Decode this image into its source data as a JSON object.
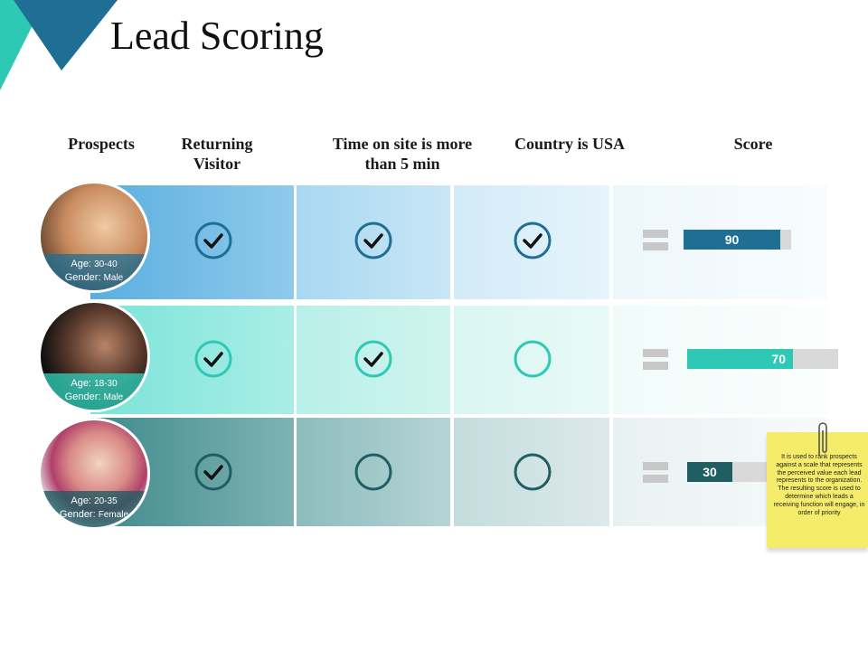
{
  "slide": {
    "title": "Lead Scoring"
  },
  "headers": {
    "prospects": "Prospects",
    "returning": "Returning Visitor",
    "time": "Time on site is more than 5 min",
    "country": "Country is USA",
    "score": "Score"
  },
  "rows": [
    {
      "age_label": "Age:",
      "age": "30-40",
      "gender_label": "Gender:",
      "gender": "Male",
      "returning": true,
      "time": true,
      "usa": true,
      "score": 90,
      "color": "#1f6f94"
    },
    {
      "age_label": "Age:",
      "age": "18-30",
      "gender_label": "Gender:",
      "gender": "Male",
      "returning": true,
      "time": true,
      "usa": false,
      "score": 70,
      "color": "#2ec9b5"
    },
    {
      "age_label": "Age:",
      "age": "20-35",
      "gender_label": "Gender:",
      "gender": "Female",
      "returning": true,
      "time": false,
      "usa": false,
      "score": 30,
      "color": "#1f5e63"
    }
  ],
  "note": {
    "text": "It is used to rank prospects against a scale that represents the perceived value each lead represents to the organization. The resulting score is used to determine which leads a receiving function will engage, in order of priority"
  },
  "icons": {
    "check": "check-circle-icon",
    "empty": "empty-circle-icon",
    "equals": "equals-icon",
    "clip": "paperclip-icon"
  }
}
